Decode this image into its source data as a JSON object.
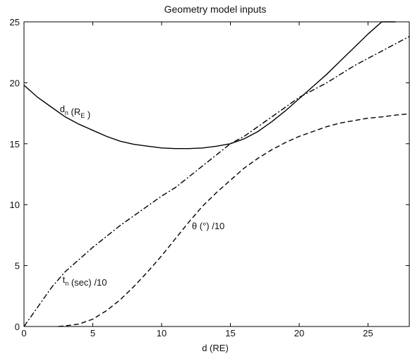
{
  "chart_data": {
    "type": "line",
    "title": "Geometry model inputs",
    "xlabel": "d (RE)",
    "ylabel": "",
    "xlim": [
      0,
      28
    ],
    "ylim": [
      0,
      25
    ],
    "xticks": [
      0,
      5,
      10,
      15,
      20,
      25
    ],
    "yticks": [
      0,
      5,
      10,
      15,
      20,
      25
    ],
    "grid": false,
    "series": [
      {
        "label_main": "d",
        "label_sub": "n",
        "label_rest": "  (R",
        "label_sub2": "E",
        "label_end": " )",
        "style": "solid",
        "x": [
          0,
          1,
          2,
          3,
          4,
          5,
          6,
          7,
          8,
          9,
          10,
          11,
          12,
          13,
          14,
          15,
          16,
          17,
          18,
          19,
          20,
          21,
          22,
          23,
          24,
          25,
          26,
          27
        ],
        "y": [
          19.8,
          18.8,
          18.0,
          17.2,
          16.6,
          16.1,
          15.6,
          15.2,
          14.95,
          14.8,
          14.65,
          14.6,
          14.6,
          14.65,
          14.8,
          15.0,
          15.4,
          16.0,
          16.8,
          17.7,
          18.7,
          19.7,
          20.7,
          21.8,
          22.9,
          24.0,
          25.0,
          25.0
        ]
      },
      {
        "label_main": "θ",
        "label_rest": " (°) /10",
        "style": "dashdot",
        "x": [
          0,
          1,
          2,
          3,
          4,
          5,
          6,
          7,
          8,
          9,
          10,
          11,
          12,
          13,
          14,
          15,
          16,
          17,
          18,
          19,
          20,
          21,
          22,
          23,
          24,
          25,
          26,
          27,
          28
        ],
        "y": [
          0,
          1.6,
          3.2,
          4.5,
          5.5,
          6.5,
          7.4,
          8.3,
          9.1,
          9.9,
          10.7,
          11.4,
          12.3,
          13.2,
          14.1,
          15.0,
          15.6,
          16.4,
          17.2,
          18.0,
          18.8,
          19.4,
          20.0,
          20.7,
          21.4,
          22.0,
          22.6,
          23.2,
          23.8
        ]
      },
      {
        "label_main": "t",
        "label_sub": "n",
        "label_rest": " (sec) /10",
        "style": "dashed",
        "x": [
          2.5,
          3,
          4,
          5,
          6,
          7,
          8,
          9,
          10,
          11,
          12,
          13,
          14,
          15,
          16,
          17,
          18,
          19,
          20,
          21,
          22,
          23,
          24,
          25,
          26,
          27,
          28
        ],
        "y": [
          0,
          0.05,
          0.2,
          0.6,
          1.3,
          2.2,
          3.3,
          4.5,
          5.8,
          7.2,
          8.6,
          9.9,
          11.0,
          12.0,
          13.0,
          13.8,
          14.5,
          15.1,
          15.6,
          16.0,
          16.4,
          16.7,
          16.9,
          17.1,
          17.2,
          17.35,
          17.45
        ]
      }
    ]
  }
}
